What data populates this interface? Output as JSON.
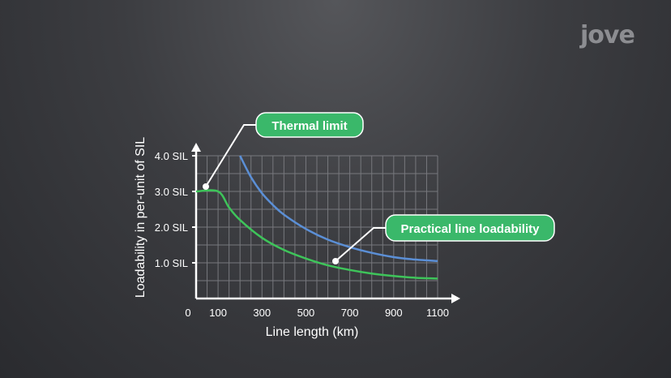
{
  "brand": {
    "logo_text": "jove"
  },
  "chart_data": {
    "type": "line",
    "title": "",
    "xlabel": "Line length (km)",
    "ylabel": "Loadability in per-unit of SIL",
    "x_ticks": [
      {
        "value": 0,
        "label": "0"
      },
      {
        "value": 100,
        "label": "100"
      },
      {
        "value": 300,
        "label": "300"
      },
      {
        "value": 500,
        "label": "500"
      },
      {
        "value": 700,
        "label": "700"
      },
      {
        "value": 900,
        "label": "900"
      },
      {
        "value": 1100,
        "label": "1100"
      }
    ],
    "y_ticks": [
      {
        "value": 1.0,
        "label": "1.0 SIL"
      },
      {
        "value": 2.0,
        "label": "2.0 SIL"
      },
      {
        "value": 3.0,
        "label": "3.0 SIL"
      },
      {
        "value": 4.0,
        "label": "4.0 SIL"
      }
    ],
    "xlim": [
      0,
      1100
    ],
    "ylim": [
      0,
      4.0
    ],
    "grid": true,
    "series": [
      {
        "color": "#5b8fd6",
        "x": [
          200,
          250,
          300,
          350,
          400,
          500,
          600,
          700,
          800,
          900,
          1000,
          1100
        ],
        "y": [
          4.0,
          3.4,
          2.95,
          2.62,
          2.35,
          1.95,
          1.65,
          1.44,
          1.28,
          1.16,
          1.09,
          1.05
        ]
      },
      {
        "color": "#3ec45a",
        "x": [
          0,
          100,
          150,
          200,
          300,
          400,
          500,
          600,
          700,
          800,
          900,
          1000,
          1100
        ],
        "y": [
          3.0,
          3.0,
          2.55,
          2.2,
          1.7,
          1.36,
          1.12,
          0.93,
          0.8,
          0.7,
          0.63,
          0.58,
          0.56
        ]
      }
    ],
    "annotations": [
      {
        "text": "Thermal limit",
        "point": {
          "x": 50,
          "y": 3.0
        },
        "color": "#3ab86a"
      },
      {
        "text": "Practical line loadability",
        "point": {
          "x": 640,
          "y": 0.05
        },
        "color": "#3ab86a"
      }
    ]
  }
}
